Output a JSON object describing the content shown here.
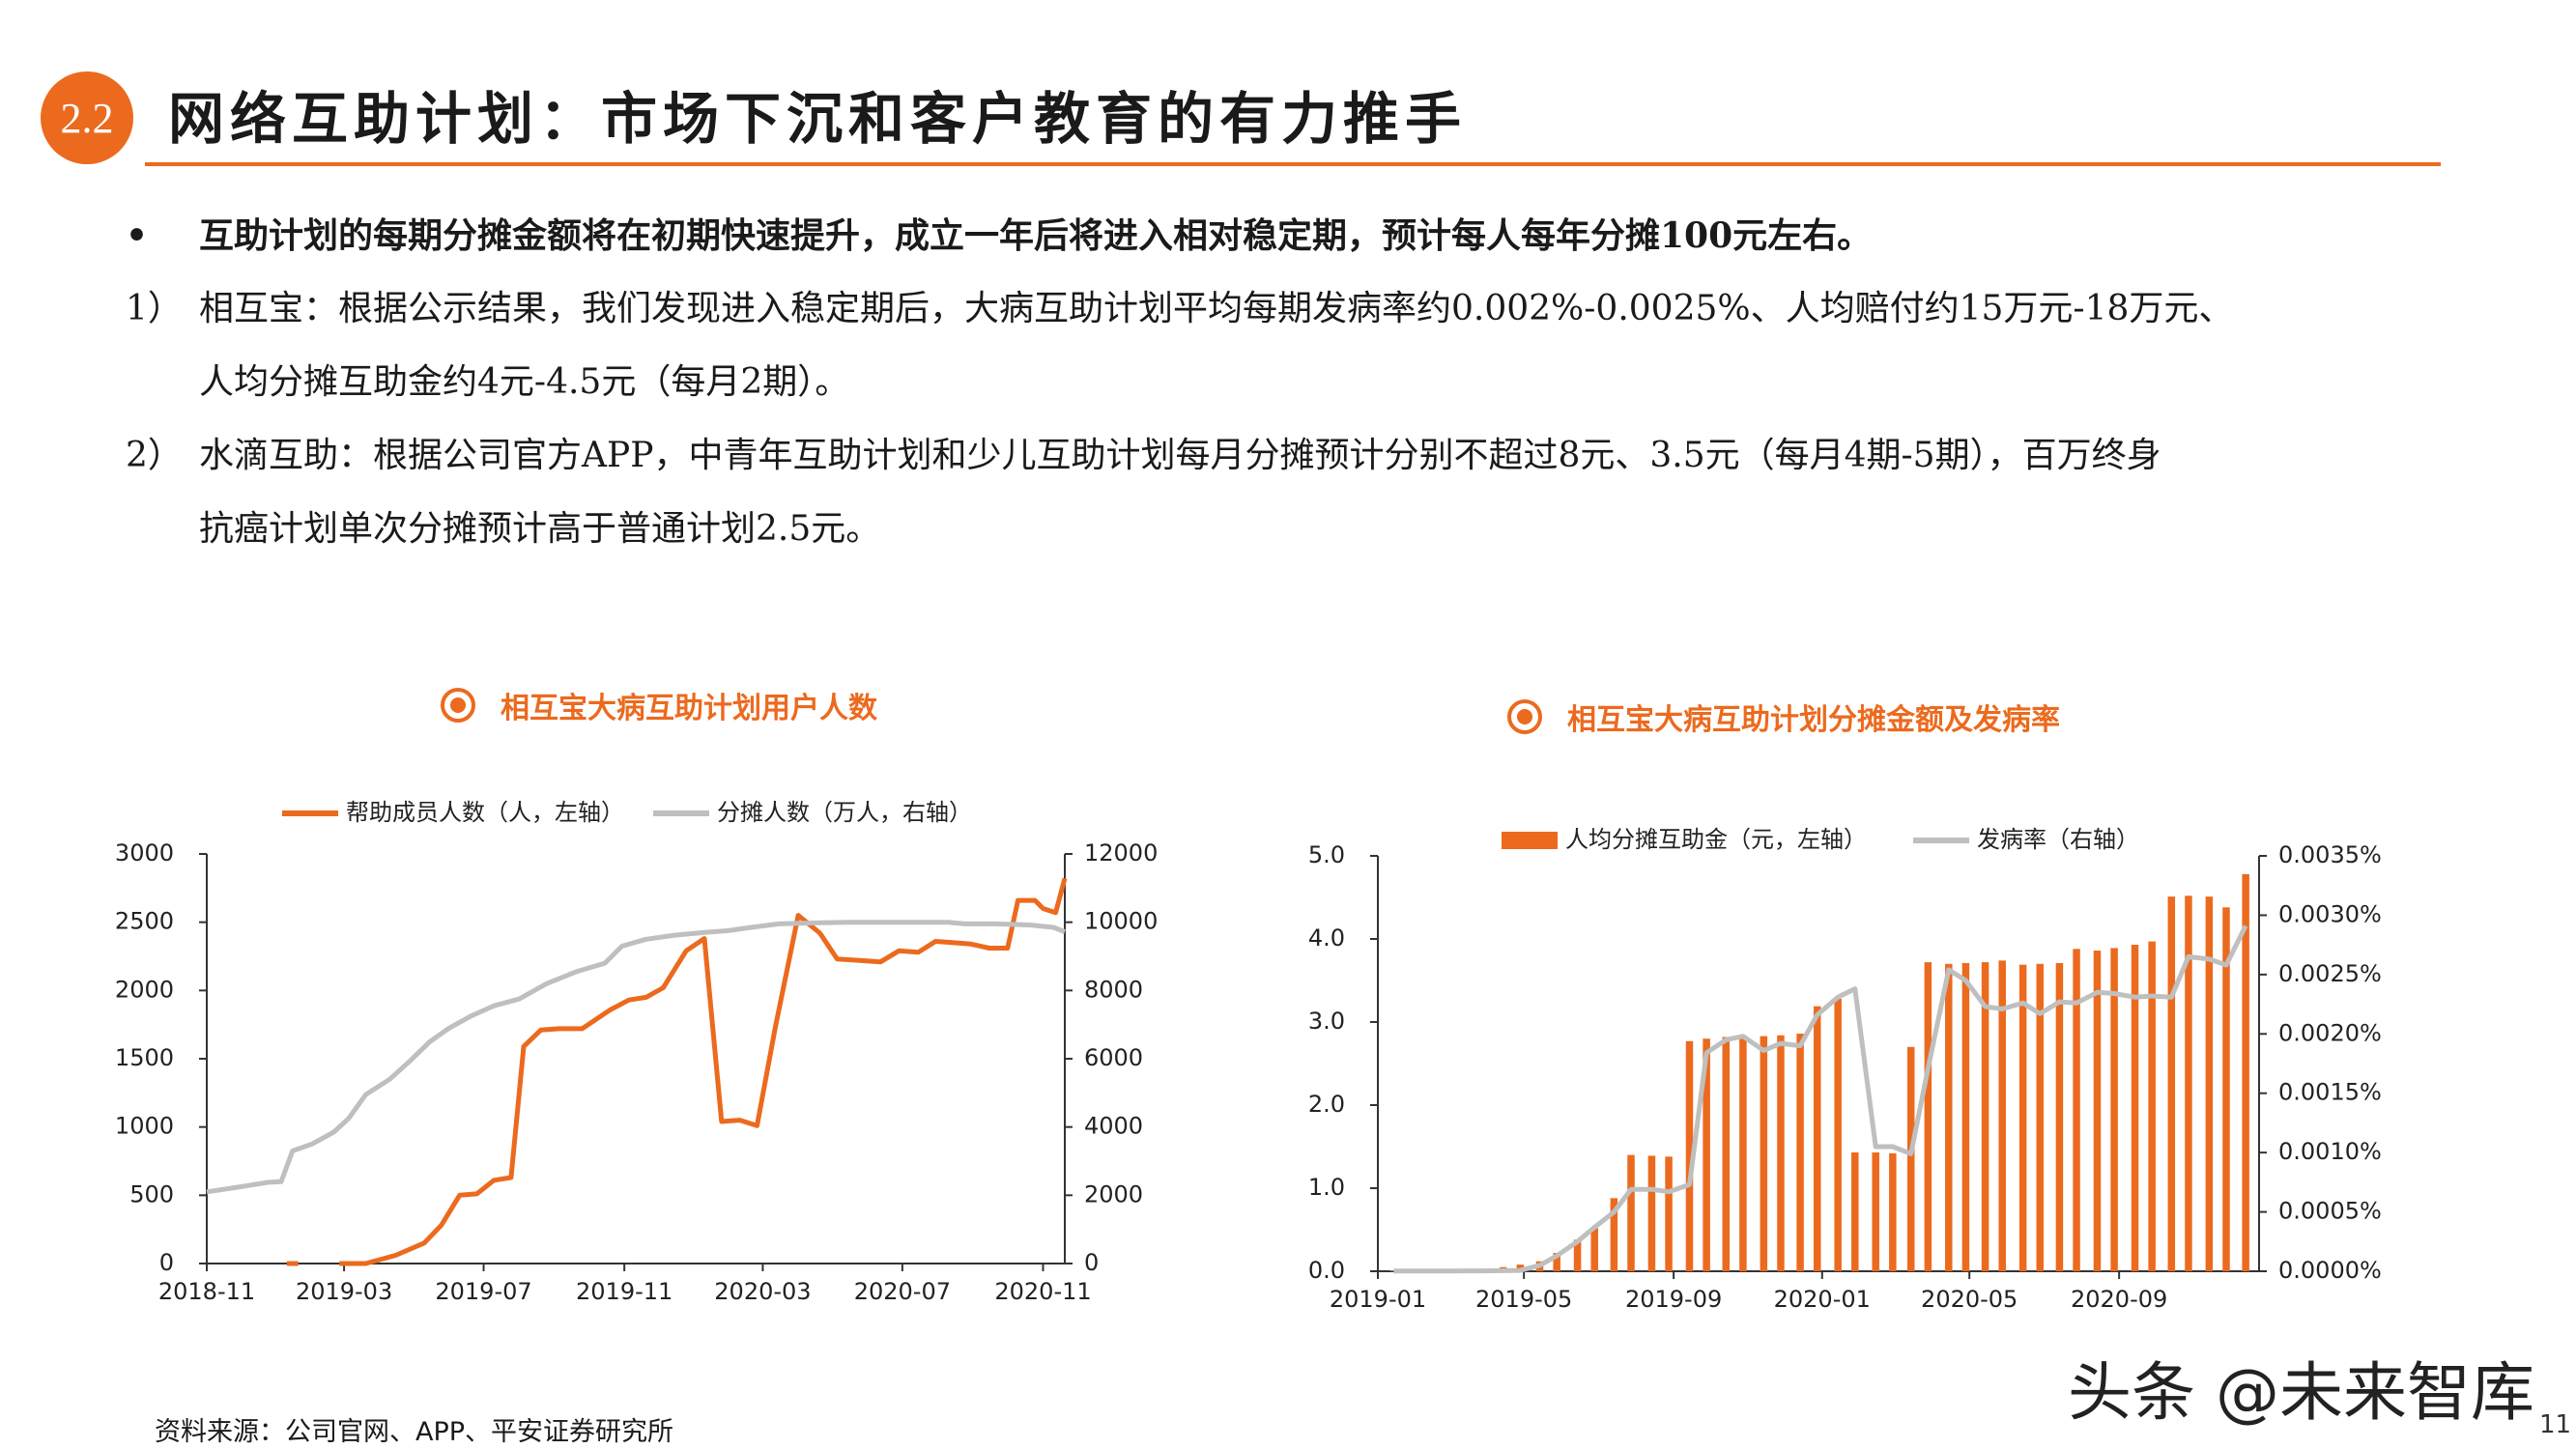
{
  "header": {
    "section_number": "2.2",
    "title": "网络互助计划：市场下沉和客户教育的有力推手"
  },
  "body": {
    "bullet_symbol": "•",
    "bullet": "互助计划的每期分摊金额将在初期快速提升，成立一年后将进入相对稳定期，预计每人每年分摊100元左右。",
    "item1_num": "1）",
    "item1_line1": "相互宝：根据公示结果，我们发现进入稳定期后，大病互助计划平均每期发病率约0.002%-0.0025%、人均赔付约15万元-18万元、",
    "item1_line2": "人均分摊互助金约4元-4.5元（每月2期）。",
    "item2_num": "2）",
    "item2_line1": "水滴互助：根据公司官方APP，中青年互助计划和少儿互助计划每月分摊预计分别不超过8元、3.5元（每月4期-5期），百万终身",
    "item2_line2": "抗癌计划单次分摊预计高于普通计划2.5元。"
  },
  "colors": {
    "accent": "#ec6a1e",
    "gray": "#bfbfbf",
    "axis": "#333333"
  },
  "chart_data": [
    {
      "type": "line",
      "title": "相互宝大病互助计划用户人数",
      "x_ticks": [
        "2018-11",
        "2019-03",
        "2019-07",
        "2019-11",
        "2020-03",
        "2020-07",
        "2020-11"
      ],
      "x_range": [
        "2018-11-01",
        "2020-11-20"
      ],
      "ylim": [
        0,
        3000
      ],
      "y_ticks": [
        "0",
        "500",
        "1000",
        "1500",
        "2000",
        "2500",
        "3000"
      ],
      "y2lim": [
        0,
        12000
      ],
      "y2_ticks": [
        "0",
        "2000",
        "4000",
        "6000",
        "8000",
        "10000",
        "12000"
      ],
      "series": [
        {
          "name": "帮助成员人数（人，左轴）",
          "axis": "left",
          "color": "#ec6a1e",
          "segments": [
            [
              [
                "2019-01-10",
                0
              ],
              [
                "2019-01-20",
                0
              ]
            ],
            [
              [
                "2019-02-25",
                0
              ],
              [
                "2019-03-20",
                0
              ],
              [
                "2019-04-15",
                60
              ],
              [
                "2019-05-10",
                150
              ],
              [
                "2019-05-25",
                280
              ],
              [
                "2019-06-10",
                500
              ],
              [
                "2019-06-25",
                510
              ],
              [
                "2019-07-10",
                610
              ],
              [
                "2019-07-25",
                630
              ],
              [
                "2019-08-05",
                1590
              ],
              [
                "2019-08-20",
                1710
              ],
              [
                "2019-09-05",
                1720
              ],
              [
                "2019-09-25",
                1720
              ],
              [
                "2019-10-20",
                1860
              ],
              [
                "2019-11-05",
                1930
              ],
              [
                "2019-11-20",
                1950
              ],
              [
                "2019-12-05",
                2020
              ],
              [
                "2019-12-25",
                2290
              ],
              [
                "2020-01-10",
                2380
              ],
              [
                "2020-01-25",
                1040
              ],
              [
                "2020-02-10",
                1050
              ],
              [
                "2020-02-25",
                1010
              ],
              [
                "2020-03-12",
                1730
              ],
              [
                "2020-04-01",
                2550
              ],
              [
                "2020-04-20",
                2420
              ],
              [
                "2020-05-05",
                2230
              ],
              [
                "2020-05-25",
                2220
              ],
              [
                "2020-06-12",
                2210
              ],
              [
                "2020-06-28",
                2290
              ],
              [
                "2020-07-15",
                2280
              ],
              [
                "2020-07-30",
                2360
              ],
              [
                "2020-08-15",
                2350
              ],
              [
                "2020-08-30",
                2340
              ],
              [
                "2020-09-15",
                2310
              ],
              [
                "2020-10-01",
                2310
              ],
              [
                "2020-10-10",
                2660
              ],
              [
                "2020-10-25",
                2660
              ],
              [
                "2020-11-01",
                2600
              ],
              [
                "2020-11-12",
                2570
              ],
              [
                "2020-11-20",
                2820
              ]
            ]
          ]
        },
        {
          "name": "分摊人数（万人，右轴）",
          "axis": "right",
          "color": "#bfbfbf",
          "segments": [
            [
              [
                "2018-11-01",
                2100
              ],
              [
                "2018-12-01",
                2250
              ],
              [
                "2018-12-25",
                2380
              ],
              [
                "2019-01-05",
                2400
              ],
              [
                "2019-01-15",
                3300
              ],
              [
                "2019-02-01",
                3500
              ],
              [
                "2019-02-20",
                3850
              ],
              [
                "2019-03-05",
                4250
              ],
              [
                "2019-03-20",
                4950
              ],
              [
                "2019-04-10",
                5400
              ],
              [
                "2019-04-28",
                5950
              ],
              [
                "2019-05-15",
                6500
              ],
              [
                "2019-06-01",
                6900
              ],
              [
                "2019-06-20",
                7250
              ],
              [
                "2019-07-10",
                7550
              ],
              [
                "2019-08-01",
                7750
              ],
              [
                "2019-08-25",
                8200
              ],
              [
                "2019-09-20",
                8550
              ],
              [
                "2019-10-15",
                8800
              ],
              [
                "2019-10-30",
                9300
              ],
              [
                "2019-11-20",
                9500
              ],
              [
                "2019-12-15",
                9620
              ],
              [
                "2020-01-10",
                9700
              ],
              [
                "2020-01-30",
                9750
              ],
              [
                "2020-02-20",
                9850
              ],
              [
                "2020-03-15",
                9950
              ],
              [
                "2020-04-15",
                9980
              ],
              [
                "2020-05-15",
                10000
              ],
              [
                "2020-07-01",
                10000
              ],
              [
                "2020-08-10",
                10000
              ],
              [
                "2020-08-25",
                9950
              ],
              [
                "2020-09-20",
                9950
              ],
              [
                "2020-10-20",
                9920
              ],
              [
                "2020-11-10",
                9850
              ],
              [
                "2020-11-20",
                9720
              ]
            ]
          ]
        }
      ]
    },
    {
      "type": "bar+line",
      "title": "相互宝大病互助计划分摊金额及发病率",
      "x_ticks": [
        "2019-01",
        "2019-05",
        "2019-09",
        "2020-01",
        "2020-05",
        "2020-09"
      ],
      "x_range": [
        "2019-01-01",
        "2020-12-25"
      ],
      "ylim": [
        0,
        5
      ],
      "y_ticks": [
        "0.0",
        "1.0",
        "2.0",
        "3.0",
        "4.0",
        "5.0"
      ],
      "y2lim": [
        0,
        0.0035
      ],
      "y2_ticks": [
        "0.0000%",
        "0.0005%",
        "0.0010%",
        "0.0015%",
        "0.0020%",
        "0.0025%",
        "0.0030%",
        "0.0035%"
      ],
      "series": [
        {
          "name": "人均分摊互助金（元，左轴）",
          "type": "bar",
          "axis": "left",
          "color": "#ec6a1e",
          "points": [
            [
              "2019-01-14",
              0.01
            ],
            [
              "2019-01-28",
              0.01
            ],
            [
              "2019-02-14",
              0.01
            ],
            [
              "2019-02-28",
              0.01
            ],
            [
              "2019-03-14",
              0.02
            ],
            [
              "2019-03-28",
              0.02
            ],
            [
              "2019-04-14",
              0.05
            ],
            [
              "2019-04-28",
              0.08
            ],
            [
              "2019-05-14",
              0.12
            ],
            [
              "2019-05-28",
              0.22
            ],
            [
              "2019-06-14",
              0.38
            ],
            [
              "2019-06-28",
              0.52
            ],
            [
              "2019-07-14",
              0.88
            ],
            [
              "2019-07-28",
              1.4
            ],
            [
              "2019-08-14",
              1.39
            ],
            [
              "2019-08-28",
              1.38
            ],
            [
              "2019-09-14",
              2.77
            ],
            [
              "2019-09-28",
              2.8
            ],
            [
              "2019-10-14",
              2.82
            ],
            [
              "2019-10-28",
              2.82
            ],
            [
              "2019-11-14",
              2.83
            ],
            [
              "2019-11-28",
              2.84
            ],
            [
              "2019-12-14",
              2.86
            ],
            [
              "2019-12-28",
              3.19
            ],
            [
              "2020-01-14",
              3.28
            ],
            [
              "2020-01-28",
              1.43
            ],
            [
              "2020-02-14",
              1.43
            ],
            [
              "2020-02-28",
              1.42
            ],
            [
              "2020-03-14",
              2.7
            ],
            [
              "2020-03-28",
              3.72
            ],
            [
              "2020-04-14",
              3.7
            ],
            [
              "2020-04-28",
              3.71
            ],
            [
              "2020-05-14",
              3.72
            ],
            [
              "2020-05-28",
              3.74
            ],
            [
              "2020-06-14",
              3.69
            ],
            [
              "2020-06-28",
              3.7
            ],
            [
              "2020-07-14",
              3.71
            ],
            [
              "2020-07-28",
              3.88
            ],
            [
              "2020-08-14",
              3.86
            ],
            [
              "2020-08-28",
              3.89
            ],
            [
              "2020-09-14",
              3.93
            ],
            [
              "2020-09-28",
              3.97
            ],
            [
              "2020-10-14",
              4.51
            ],
            [
              "2020-10-28",
              4.52
            ],
            [
              "2020-11-14",
              4.51
            ],
            [
              "2020-11-28",
              4.38
            ],
            [
              "2020-12-14",
              4.78
            ]
          ]
        },
        {
          "name": "发病率（右轴）",
          "type": "line",
          "axis": "right",
          "color": "#bfbfbf",
          "points": [
            [
              "2019-01-14",
              1.5e-06
            ],
            [
              "2019-01-28",
              1.5e-06
            ],
            [
              "2019-02-14",
              1.5e-06
            ],
            [
              "2019-02-28",
              1.5e-06
            ],
            [
              "2019-03-14",
              3e-06
            ],
            [
              "2019-03-28",
              3e-06
            ],
            [
              "2019-04-14",
              4.5e-06
            ],
            [
              "2019-04-28",
              7e-06
            ],
            [
              "2019-05-14",
              5e-05
            ],
            [
              "2019-05-28",
              0.00013
            ],
            [
              "2019-06-14",
              0.00025
            ],
            [
              "2019-06-28",
              0.00037
            ],
            [
              "2019-07-14",
              0.0005
            ],
            [
              "2019-07-28",
              0.00069
            ],
            [
              "2019-08-14",
              0.00069
            ],
            [
              "2019-08-28",
              0.00067
            ],
            [
              "2019-09-14",
              0.00073
            ],
            [
              "2019-09-28",
              0.00184
            ],
            [
              "2019-10-14",
              0.00195
            ],
            [
              "2019-10-28",
              0.00198
            ],
            [
              "2019-11-14",
              0.00186
            ],
            [
              "2019-11-28",
              0.00192
            ],
            [
              "2019-12-14",
              0.0019
            ],
            [
              "2019-12-28",
              0.00216
            ],
            [
              "2020-01-14",
              0.00231
            ],
            [
              "2020-01-28",
              0.00238
            ],
            [
              "2020-02-14",
              0.00105
            ],
            [
              "2020-02-28",
              0.00105
            ],
            [
              "2020-03-14",
              0.00099
            ],
            [
              "2020-03-28",
              0.00171
            ],
            [
              "2020-04-14",
              0.00254
            ],
            [
              "2020-04-28",
              0.00245
            ],
            [
              "2020-05-14",
              0.00223
            ],
            [
              "2020-05-28",
              0.00221
            ],
            [
              "2020-06-14",
              0.00226
            ],
            [
              "2020-06-28",
              0.00217
            ],
            [
              "2020-07-14",
              0.00227
            ],
            [
              "2020-07-28",
              0.00226
            ],
            [
              "2020-08-14",
              0.00235
            ],
            [
              "2020-08-28",
              0.00234
            ],
            [
              "2020-09-14",
              0.00231
            ],
            [
              "2020-09-28",
              0.00232
            ],
            [
              "2020-10-14",
              0.00231
            ],
            [
              "2020-10-28",
              0.00265
            ],
            [
              "2020-11-14",
              0.00263
            ],
            [
              "2020-11-28",
              0.00258
            ],
            [
              "2020-12-14",
              0.00291
            ]
          ]
        }
      ]
    }
  ],
  "footer": {
    "source": "资料来源：公司官网、APP、平安证券研究所",
    "watermark": "头条 @未来智库",
    "page_number": "11"
  }
}
